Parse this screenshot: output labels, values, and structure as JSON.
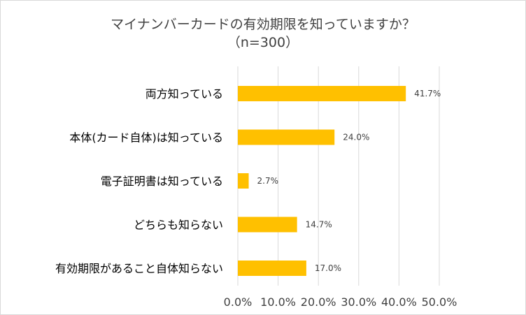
{
  "chart_data": {
    "type": "bar",
    "orientation": "horizontal",
    "title": "マイナンバーカードの有効期限を知っていますか？",
    "subtitle": "（n=300）",
    "categories": [
      "両方知っている",
      "本体(カード自体)は知っている",
      "電子証明書は知っている",
      "どちらも知らない",
      "有効期限があること自体知らない"
    ],
    "values": [
      41.7,
      24.0,
      2.7,
      14.7,
      17.0
    ],
    "data_labels": [
      "41.7%",
      "24.0%",
      "2.7%",
      "14.7%",
      "17.0%"
    ],
    "xlim": [
      0,
      50
    ],
    "xticks": [
      "0.0%",
      "10.0%",
      "20.0%",
      "30.0%",
      "40.0%",
      "50.0%"
    ],
    "grid": true,
    "legend": "none",
    "bar_color": "#ffc000",
    "grid_color": "#d9d9d9"
  }
}
